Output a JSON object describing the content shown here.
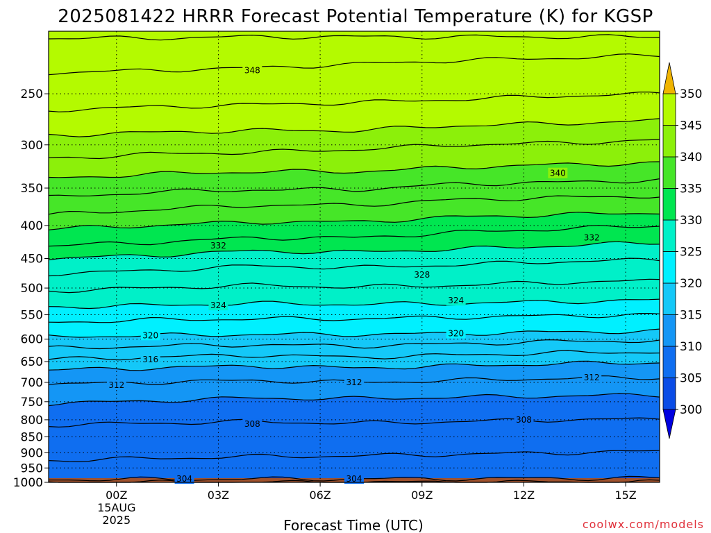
{
  "page": {
    "title": "2025081422 HRRR Forecast Potential Temperature (K) for KGSP",
    "credit": "coolwx.com/models"
  },
  "chart_data": {
    "type": "contour",
    "title": "2025081422 HRRR Forecast Potential Temperature (K) for KGSP",
    "xlabel": "Forecast Time (UTC)",
    "ylabel": "",
    "x_range_utc_hours_since_2025081422": [
      0,
      18
    ],
    "x_ticks": [
      {
        "label": "00Z",
        "hour": 2,
        "sub": [
          "15AUG",
          "2025"
        ]
      },
      {
        "label": "03Z",
        "hour": 5,
        "sub": []
      },
      {
        "label": "06Z",
        "hour": 8,
        "sub": []
      },
      {
        "label": "09Z",
        "hour": 11,
        "sub": []
      },
      {
        "label": "12Z",
        "hour": 14,
        "sub": []
      },
      {
        "label": "15Z",
        "hour": 17,
        "sub": []
      }
    ],
    "y_axis": {
      "scale": "pressure (hPa), reversed",
      "range": [
        1000,
        200
      ]
    },
    "y_ticks": [
      250,
      300,
      350,
      400,
      450,
      500,
      550,
      600,
      650,
      700,
      750,
      800,
      850,
      900,
      950,
      1000
    ],
    "grid": "dotted",
    "colorbar": {
      "levels": [
        300,
        305,
        310,
        315,
        320,
        325,
        330,
        335,
        340,
        345,
        350
      ],
      "colors": [
        "#0000e0",
        "#0a4ce6",
        "#0f6ef0",
        "#1496f5",
        "#14c8f8",
        "#00f0ff",
        "#00f0c8",
        "#00e650",
        "#46e628",
        "#8cf00a",
        "#b4fa00",
        "#fafa00",
        "#f0b400"
      ],
      "under_color": "#0000e0",
      "over_color": "#f0b400"
    },
    "ground_color": "#a0522d",
    "contour_interval_K": 2,
    "contours": [
      {
        "theta": 302,
        "p": [
          1000,
          1000,
          1000,
          1000,
          999,
          999,
          999
        ]
      },
      {
        "theta": 304,
        "p": [
          990,
          989,
          988,
          988,
          987,
          986,
          985
        ]
      },
      {
        "theta": 306,
        "p": [
          925,
          918,
          912,
          910,
          905,
          900,
          895
        ]
      },
      {
        "theta": 308,
        "p": [
          815,
          810,
          805,
          810,
          805,
          800,
          798
        ]
      },
      {
        "theta": 310,
        "p": [
          755,
          748,
          740,
          742,
          738,
          735,
          732
        ]
      },
      {
        "theta": 312,
        "p": [
          705,
          700,
          695,
          700,
          695,
          690,
          688
        ]
      },
      {
        "theta": 314,
        "p": [
          670,
          665,
          660,
          665,
          660,
          655,
          652
        ]
      },
      {
        "theta": 316,
        "p": [
          645,
          640,
          635,
          640,
          635,
          630,
          628
        ]
      },
      {
        "theta": 318,
        "p": [
          620,
          615,
          612,
          615,
          610,
          605,
          603
        ]
      },
      {
        "theta": 320,
        "p": [
          595,
          592,
          590,
          590,
          588,
          585,
          583
        ]
      },
      {
        "theta": 322,
        "p": [
          565,
          560,
          558,
          558,
          555,
          552,
          550
        ]
      },
      {
        "theta": 324,
        "p": [
          535,
          532,
          528,
          530,
          528,
          525,
          522
        ]
      },
      {
        "theta": 326,
        "p": [
          505,
          500,
          495,
          498,
          495,
          490,
          487
        ]
      },
      {
        "theta": 328,
        "p": [
          475,
          470,
          462,
          465,
          460,
          455,
          452
        ]
      },
      {
        "theta": 330,
        "p": [
          450,
          445,
          438,
          440,
          435,
          430,
          425
        ]
      },
      {
        "theta": 332,
        "p": [
          430,
          425,
          418,
          418,
          410,
          405,
          400
        ]
      },
      {
        "theta": 334,
        "p": [
          405,
          400,
          395,
          395,
          388,
          385,
          382
        ]
      },
      {
        "theta": 336,
        "p": [
          385,
          378,
          372,
          372,
          365,
          362,
          360
        ]
      },
      {
        "theta": 338,
        "p": [
          362,
          355,
          352,
          352,
          345,
          343,
          340
        ]
      },
      {
        "theta": 340,
        "p": [
          338,
          333,
          330,
          330,
          325,
          322,
          320
        ]
      },
      {
        "theta": 342,
        "p": [
          315,
          310,
          308,
          305,
          300,
          298,
          295
        ]
      },
      {
        "theta": 344,
        "p": [
          290,
          287,
          285,
          285,
          280,
          278,
          275
        ]
      },
      {
        "theta": 346,
        "p": [
          265,
          262,
          260,
          258,
          255,
          252,
          250
        ]
      },
      {
        "theta": 348,
        "p": [
          232,
          230,
          228,
          225,
          222,
          220,
          218
        ]
      },
      {
        "theta": 350,
        "p": [
          205,
          205,
          204,
          204,
          204,
          204,
          204
        ]
      }
    ],
    "contour_labels": [
      {
        "text": "348",
        "hour": 6,
        "p": 230
      },
      {
        "text": "340",
        "hour": 15,
        "p": 332
      },
      {
        "text": "332",
        "hour": 5,
        "p": 430
      },
      {
        "text": "332",
        "hour": 16,
        "p": 418
      },
      {
        "text": "328",
        "hour": 11,
        "p": 477
      },
      {
        "text": "324",
        "hour": 5,
        "p": 532
      },
      {
        "text": "324",
        "hour": 12,
        "p": 523
      },
      {
        "text": "320",
        "hour": 3,
        "p": 592
      },
      {
        "text": "320",
        "hour": 12,
        "p": 588
      },
      {
        "text": "316",
        "hour": 3,
        "p": 645
      },
      {
        "text": "312",
        "hour": 2,
        "p": 707
      },
      {
        "text": "312",
        "hour": 9,
        "p": 700
      },
      {
        "text": "312",
        "hour": 16,
        "p": 688
      },
      {
        "text": "308",
        "hour": 6,
        "p": 812
      },
      {
        "text": "308",
        "hour": 14,
        "p": 800
      },
      {
        "text": "304",
        "hour": 4,
        "p": 988
      },
      {
        "text": "304",
        "hour": 9,
        "p": 988
      }
    ]
  }
}
